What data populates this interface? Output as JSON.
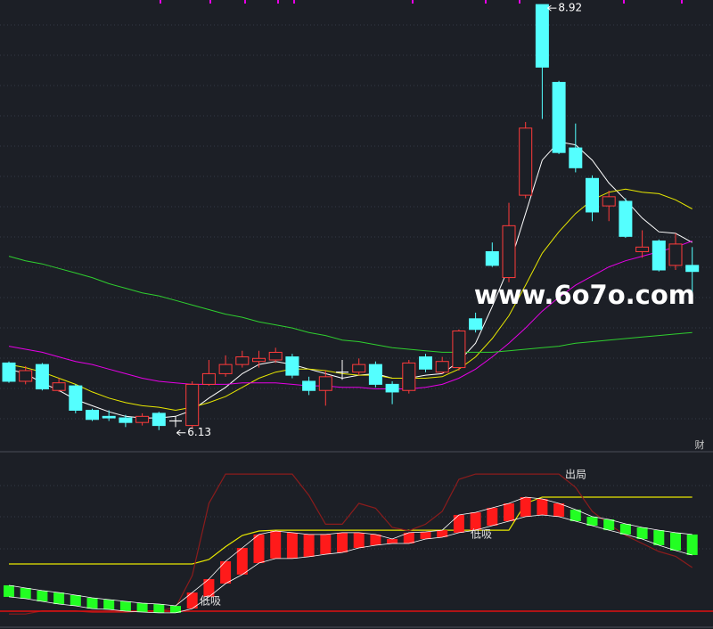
{
  "chart_data": [
    {
      "type": "candlestick",
      "ylim": [
        6.0,
        8.95
      ],
      "open": [
        6.57,
        6.45,
        6.56,
        6.39,
        6.42,
        6.26,
        6.22,
        6.21,
        6.18,
        6.24,
        6.19,
        6.16,
        6.43,
        6.5,
        6.56,
        6.58,
        6.59,
        6.61,
        6.45,
        6.39,
        6.51,
        6.51,
        6.56,
        6.43,
        6.39,
        6.61,
        6.51,
        6.54,
        6.86,
        7.3,
        7.13,
        7.67,
        8.92,
        8.41,
        7.98,
        7.78,
        7.6,
        7.63,
        7.3,
        7.37,
        7.21,
        7.21
      ],
      "high": [
        6.58,
        6.55,
        6.57,
        6.47,
        6.43,
        6.27,
        6.26,
        6.23,
        6.24,
        6.25,
        6.22,
        6.45,
        6.59,
        6.62,
        6.65,
        6.65,
        6.67,
        6.63,
        6.48,
        6.52,
        6.59,
        6.6,
        6.58,
        6.45,
        6.59,
        6.63,
        6.61,
        6.79,
        6.9,
        7.36,
        7.62,
        8.15,
        8.92,
        8.42,
        8.14,
        7.8,
        7.7,
        7.65,
        7.44,
        7.38,
        7.42,
        7.33
      ],
      "low": [
        6.44,
        6.43,
        6.39,
        6.38,
        6.24,
        6.19,
        6.19,
        6.15,
        6.16,
        6.13,
        6.15,
        6.14,
        6.42,
        6.48,
        6.54,
        6.54,
        6.57,
        6.47,
        6.36,
        6.29,
        6.46,
        6.49,
        6.41,
        6.3,
        6.37,
        6.51,
        6.5,
        6.52,
        6.77,
        7.2,
        7.1,
        7.65,
        8.17,
        7.94,
        7.82,
        7.5,
        7.5,
        7.39,
        7.26,
        7.17,
        7.18,
        7.03
      ],
      "close": [
        6.45,
        6.52,
        6.4,
        6.44,
        6.26,
        6.2,
        6.21,
        6.18,
        6.22,
        6.16,
        6.19,
        6.43,
        6.5,
        6.56,
        6.61,
        6.6,
        6.64,
        6.49,
        6.39,
        6.48,
        6.51,
        6.56,
        6.43,
        6.38,
        6.57,
        6.53,
        6.58,
        6.78,
        6.79,
        7.21,
        7.47,
        8.11,
        8.51,
        7.95,
        7.85,
        7.56,
        7.66,
        7.4,
        7.33,
        7.18,
        7.35,
        7.17
      ],
      "lines": [
        {
          "color": "#ffffff",
          "values": [
            6.53,
            6.5,
            6.44,
            6.39,
            6.33,
            6.29,
            6.25,
            6.22,
            6.21,
            6.21,
            6.22,
            6.26,
            6.34,
            6.41,
            6.5,
            6.56,
            6.58,
            6.56,
            6.53,
            6.5,
            6.47,
            6.49,
            6.5,
            6.47,
            6.47,
            6.49,
            6.5,
            6.58,
            6.7,
            6.94,
            7.2,
            7.55,
            7.9,
            8.02,
            8.0,
            7.9,
            7.75,
            7.64,
            7.52,
            7.43,
            7.42,
            7.36
          ]
        },
        {
          "color": "#e8e800",
          "values": [
            6.56,
            6.54,
            6.51,
            6.47,
            6.43,
            6.38,
            6.34,
            6.31,
            6.29,
            6.28,
            6.26,
            6.28,
            6.31,
            6.35,
            6.41,
            6.47,
            6.51,
            6.53,
            6.53,
            6.52,
            6.5,
            6.49,
            6.49,
            6.47,
            6.47,
            6.47,
            6.48,
            6.53,
            6.61,
            6.73,
            6.88,
            7.08,
            7.29,
            7.43,
            7.55,
            7.64,
            7.69,
            7.71,
            7.69,
            7.68,
            7.64,
            7.58
          ]
        },
        {
          "color": "#e600e6",
          "values": [
            6.68,
            6.66,
            6.64,
            6.61,
            6.58,
            6.56,
            6.53,
            6.5,
            6.47,
            6.45,
            6.44,
            6.43,
            6.43,
            6.43,
            6.44,
            6.44,
            6.44,
            6.43,
            6.42,
            6.42,
            6.41,
            6.41,
            6.4,
            6.4,
            6.4,
            6.41,
            6.43,
            6.47,
            6.53,
            6.61,
            6.7,
            6.8,
            6.91,
            7.0,
            7.08,
            7.14,
            7.2,
            7.24,
            7.27,
            7.3,
            7.33,
            7.37
          ]
        },
        {
          "color": "#2fcf2f",
          "values": [
            7.27,
            7.24,
            7.22,
            7.19,
            7.16,
            7.13,
            7.09,
            7.06,
            7.03,
            7.01,
            6.98,
            6.95,
            6.92,
            6.89,
            6.87,
            6.84,
            6.82,
            6.8,
            6.77,
            6.75,
            6.72,
            6.71,
            6.69,
            6.67,
            6.66,
            6.65,
            6.64,
            6.64,
            6.64,
            6.64,
            6.65,
            6.66,
            6.67,
            6.68,
            6.7,
            6.71,
            6.72,
            6.73,
            6.74,
            6.75,
            6.76,
            6.77
          ]
        }
      ],
      "rise_color": "#ff3b3b",
      "fall_color": "#54ffff",
      "max_label": 8.92,
      "min_label": 6.13,
      "watermark": "www.6o7o.com",
      "corner_text": "财"
    },
    {
      "type": "indicator",
      "ylim": [
        0,
        100
      ],
      "upper": [
        23.9,
        22.2,
        20.6,
        19.4,
        17.8,
        16.1,
        15,
        13.9,
        12.8,
        12.2,
        11.1,
        19.4,
        27.8,
        38.9,
        47.2,
        55.6,
        57.8,
        56.7,
        55.6,
        55.6,
        56.7,
        56.7,
        55.6,
        52.8,
        56.7,
        57.2,
        58.3,
        67.8,
        69.4,
        72.2,
        75,
        78.9,
        77.8,
        75,
        71.1,
        66.7,
        65,
        62.2,
        60,
        58.3,
        56.7,
        55.6
      ],
      "lower": [
        16.7,
        15.6,
        13.9,
        12.2,
        11.1,
        9.4,
        8.9,
        7.8,
        7.2,
        6.7,
        6.7,
        9.4,
        16.7,
        25,
        30.6,
        37.8,
        40.6,
        40.6,
        41.7,
        43.3,
        44.4,
        47.2,
        48.9,
        50,
        50,
        52.8,
        53.9,
        56.7,
        58.3,
        61.1,
        63.9,
        66.7,
        67.8,
        66.7,
        63.9,
        61.1,
        58.3,
        55.6,
        52.8,
        48.9,
        45.6,
        42.8
      ],
      "bar_colors": [
        "#22ff22",
        "#22ff22",
        "#22ff22",
        "#22ff22",
        "#22ff22",
        "#22ff22",
        "#22ff22",
        "#22ff22",
        "#22ff22",
        "#22ff22",
        "#22ff22",
        "#ff1a1a",
        "#ff1a1a",
        "#ff1a1a",
        "#ff1a1a",
        "#ff1a1a",
        "#ff1a1a",
        "#ff1a1a",
        "#ff1a1a",
        "#ff1a1a",
        "#ff1a1a",
        "#ff1a1a",
        "#ff1a1a",
        "#ff1a1a",
        "#ff1a1a",
        "#ff1a1a",
        "#ff1a1a",
        "#ff1a1a",
        "#ff1a1a",
        "#ff1a1a",
        "#ff1a1a",
        "#ff1a1a",
        "#ff1a1a",
        "#ff1a1a",
        "#22ff22",
        "#22ff22",
        "#22ff22",
        "#22ff22",
        "#22ff22",
        "#22ff22",
        "#22ff22",
        "#22ff22"
      ],
      "lines": [
        {
          "color": "#e8e800",
          "values": [
            37.2,
            37.2,
            37.2,
            37.2,
            37.2,
            37.2,
            37.2,
            37.2,
            37.2,
            37.2,
            37.2,
            37.2,
            40,
            48,
            55,
            57.8,
            58.3,
            58.3,
            58.3,
            58.3,
            58.3,
            58.3,
            58.3,
            58.3,
            58.3,
            58.3,
            58.3,
            58.3,
            58.3,
            58.3,
            58.3,
            75,
            78.9,
            78.9,
            78.9,
            78.9,
            78.9,
            78.9,
            78.9,
            78.9,
            78.9,
            78.9
          ]
        },
        {
          "color": "#8b1c1c",
          "values": [
            6,
            6,
            8,
            8,
            8,
            7,
            7,
            7,
            8,
            8,
            10,
            30,
            75,
            93.3,
            93.3,
            93.3,
            93.3,
            93.3,
            80,
            62,
            62,
            75,
            72,
            60,
            58,
            62,
            70,
            90,
            93.3,
            93.3,
            93.3,
            93.3,
            93.3,
            93.3,
            85,
            70,
            62,
            55,
            50,
            45,
            42,
            35
          ]
        }
      ],
      "baseline": {
        "color": "#e01010",
        "value": 7.8
      },
      "annotations": [
        "低吸",
        "低吸",
        "出局"
      ]
    }
  ]
}
